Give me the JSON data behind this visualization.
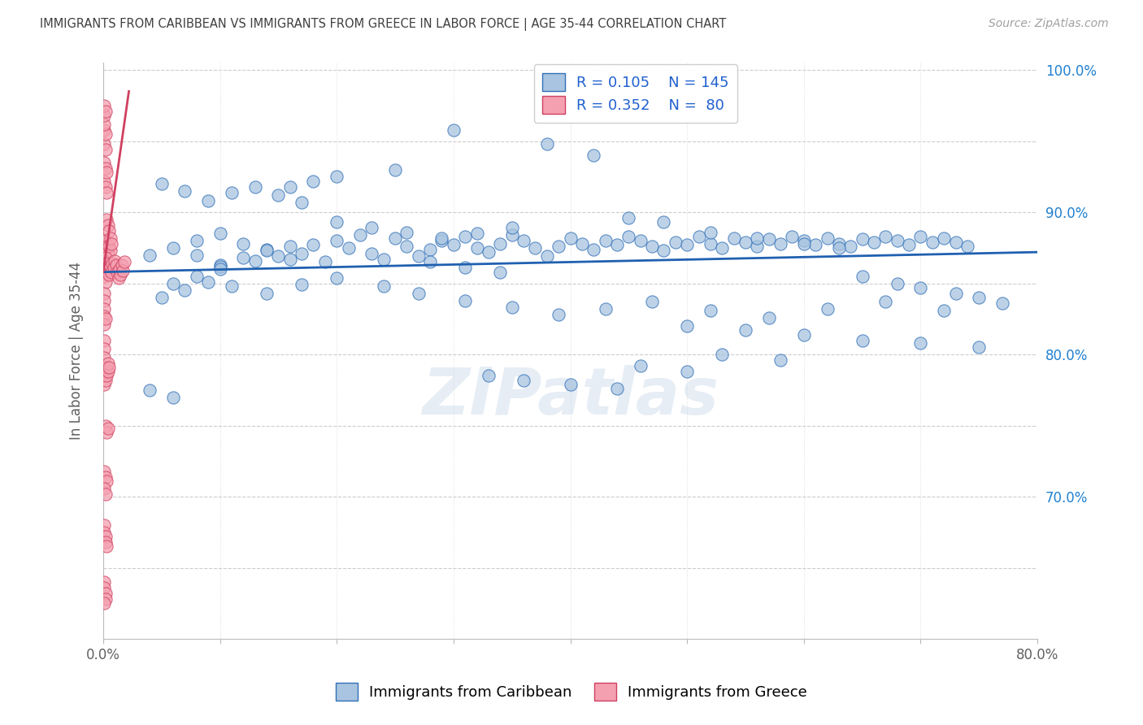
{
  "title": "IMMIGRANTS FROM CARIBBEAN VS IMMIGRANTS FROM GREECE IN LABOR FORCE | AGE 35-44 CORRELATION CHART",
  "source": "Source: ZipAtlas.com",
  "ylabel": "In Labor Force | Age 35-44",
  "xlim": [
    0.0,
    0.8
  ],
  "ylim": [
    0.6,
    1.005
  ],
  "ytick_positions": [
    0.65,
    0.7,
    0.75,
    0.8,
    0.85,
    0.9,
    0.95,
    1.0
  ],
  "ytick_labels_right": [
    "",
    "70.0%",
    "",
    "80.0%",
    "",
    "90.0%",
    "",
    "100.0%"
  ],
  "xtick_positions": [
    0.0,
    0.1,
    0.2,
    0.3,
    0.4,
    0.5,
    0.6,
    0.7,
    0.8
  ],
  "xtick_labels": [
    "0.0%",
    "",
    "",
    "",
    "",
    "",
    "",
    "",
    "80.0%"
  ],
  "blue_R": 0.105,
  "blue_N": 145,
  "pink_R": 0.352,
  "pink_N": 80,
  "blue_color": "#a8c4e0",
  "pink_color": "#f4a0b0",
  "blue_edge_color": "#3070b8",
  "pink_edge_color": "#d04060",
  "blue_line_color": "#2060b0",
  "pink_line_color": "#d04060",
  "legend_label_blue": "Immigrants from Caribbean",
  "legend_label_pink": "Immigrants from Greece",
  "watermark": "ZIPatlas",
  "background_color": "#ffffff",
  "grid_color": "#cccccc",
  "title_color": "#404040",
  "axis_label_color": "#606060",
  "blue_trend_x": [
    0.0,
    0.8
  ],
  "blue_trend_y": [
    0.858,
    0.872
  ],
  "pink_trend_x": [
    0.0,
    0.022
  ],
  "pink_trend_y": [
    0.858,
    0.985
  ],
  "blue_scatter_x": [
    0.04,
    0.06,
    0.08,
    0.1,
    0.1,
    0.12,
    0.13,
    0.14,
    0.15,
    0.16,
    0.17,
    0.18,
    0.19,
    0.2,
    0.21,
    0.22,
    0.23,
    0.24,
    0.25,
    0.26,
    0.27,
    0.28,
    0.29,
    0.3,
    0.31,
    0.32,
    0.33,
    0.34,
    0.35,
    0.36,
    0.37,
    0.38,
    0.39,
    0.4,
    0.41,
    0.42,
    0.43,
    0.44,
    0.45,
    0.46,
    0.47,
    0.48,
    0.49,
    0.5,
    0.51,
    0.52,
    0.53,
    0.54,
    0.55,
    0.56,
    0.57,
    0.58,
    0.59,
    0.6,
    0.61,
    0.62,
    0.63,
    0.64,
    0.65,
    0.66,
    0.67,
    0.68,
    0.69,
    0.7,
    0.71,
    0.72,
    0.73,
    0.74,
    0.08,
    0.1,
    0.12,
    0.14,
    0.16,
    0.05,
    0.07,
    0.09,
    0.11,
    0.13,
    0.15,
    0.17,
    0.2,
    0.23,
    0.26,
    0.29,
    0.32,
    0.35,
    0.05,
    0.07,
    0.09,
    0.11,
    0.14,
    0.17,
    0.2,
    0.24,
    0.27,
    0.31,
    0.35,
    0.39,
    0.43,
    0.47,
    0.52,
    0.57,
    0.62,
    0.67,
    0.72,
    0.5,
    0.55,
    0.6,
    0.65,
    0.7,
    0.75,
    0.65,
    0.68,
    0.7,
    0.73,
    0.75,
    0.77,
    0.38,
    0.42,
    0.3,
    0.25,
    0.2,
    0.18,
    0.16,
    0.45,
    0.48,
    0.52,
    0.56,
    0.6,
    0.63,
    0.53,
    0.58,
    0.46,
    0.5,
    0.33,
    0.36,
    0.4,
    0.44,
    0.08,
    0.1,
    0.06,
    0.28,
    0.31,
    0.34,
    0.04,
    0.06
  ],
  "blue_scatter_y": [
    0.87,
    0.875,
    0.88,
    0.863,
    0.885,
    0.878,
    0.866,
    0.874,
    0.869,
    0.876,
    0.871,
    0.877,
    0.865,
    0.88,
    0.875,
    0.884,
    0.871,
    0.867,
    0.882,
    0.876,
    0.869,
    0.874,
    0.88,
    0.877,
    0.883,
    0.875,
    0.872,
    0.878,
    0.884,
    0.88,
    0.875,
    0.869,
    0.876,
    0.882,
    0.878,
    0.874,
    0.88,
    0.877,
    0.883,
    0.88,
    0.876,
    0.873,
    0.879,
    0.877,
    0.883,
    0.878,
    0.875,
    0.882,
    0.879,
    0.876,
    0.881,
    0.878,
    0.883,
    0.88,
    0.877,
    0.882,
    0.878,
    0.876,
    0.881,
    0.879,
    0.883,
    0.88,
    0.877,
    0.883,
    0.879,
    0.882,
    0.879,
    0.876,
    0.855,
    0.862,
    0.868,
    0.873,
    0.867,
    0.92,
    0.915,
    0.908,
    0.914,
    0.918,
    0.912,
    0.907,
    0.893,
    0.889,
    0.886,
    0.882,
    0.885,
    0.889,
    0.84,
    0.845,
    0.851,
    0.848,
    0.843,
    0.849,
    0.854,
    0.848,
    0.843,
    0.838,
    0.833,
    0.828,
    0.832,
    0.837,
    0.831,
    0.826,
    0.832,
    0.837,
    0.831,
    0.82,
    0.817,
    0.814,
    0.81,
    0.808,
    0.805,
    0.855,
    0.85,
    0.847,
    0.843,
    0.84,
    0.836,
    0.948,
    0.94,
    0.958,
    0.93,
    0.925,
    0.922,
    0.918,
    0.896,
    0.893,
    0.886,
    0.882,
    0.878,
    0.875,
    0.8,
    0.796,
    0.792,
    0.788,
    0.785,
    0.782,
    0.779,
    0.776,
    0.87,
    0.86,
    0.85,
    0.865,
    0.861,
    0.858,
    0.775,
    0.77
  ],
  "pink_scatter_x": [
    0.002,
    0.003,
    0.004,
    0.005,
    0.006,
    0.003,
    0.004,
    0.005,
    0.006,
    0.007,
    0.001,
    0.002,
    0.003,
    0.001,
    0.002,
    0.003,
    0.001,
    0.002,
    0.001,
    0.002,
    0.001,
    0.001,
    0.001,
    0.002,
    0.001,
    0.002,
    0.001,
    0.001,
    0.001,
    0.001,
    0.001,
    0.002,
    0.002,
    0.003,
    0.004,
    0.005,
    0.006,
    0.007,
    0.008,
    0.009,
    0.01,
    0.011,
    0.012,
    0.013,
    0.014,
    0.015,
    0.016,
    0.017,
    0.018,
    0.001,
    0.001,
    0.001,
    0.001,
    0.001,
    0.001,
    0.002,
    0.002,
    0.003,
    0.003,
    0.004,
    0.004,
    0.005,
    0.002,
    0.003,
    0.004,
    0.001,
    0.002,
    0.003,
    0.001,
    0.002,
    0.001,
    0.001,
    0.002,
    0.002,
    0.003,
    0.001,
    0.001,
    0.002,
    0.002,
    0.001
  ],
  "pink_scatter_y": [
    0.88,
    0.876,
    0.872,
    0.876,
    0.873,
    0.895,
    0.891,
    0.887,
    0.882,
    0.878,
    0.922,
    0.918,
    0.914,
    0.935,
    0.931,
    0.928,
    0.948,
    0.944,
    0.958,
    0.955,
    0.962,
    0.968,
    0.975,
    0.971,
    0.855,
    0.851,
    0.843,
    0.838,
    0.832,
    0.827,
    0.821,
    0.825,
    0.868,
    0.864,
    0.86,
    0.856,
    0.862,
    0.858,
    0.864,
    0.861,
    0.866,
    0.863,
    0.858,
    0.854,
    0.86,
    0.856,
    0.863,
    0.859,
    0.865,
    0.81,
    0.804,
    0.798,
    0.791,
    0.785,
    0.779,
    0.782,
    0.788,
    0.785,
    0.791,
    0.788,
    0.794,
    0.791,
    0.75,
    0.745,
    0.748,
    0.718,
    0.714,
    0.711,
    0.706,
    0.702,
    0.68,
    0.675,
    0.672,
    0.668,
    0.665,
    0.64,
    0.636,
    0.632,
    0.628,
    0.625
  ]
}
